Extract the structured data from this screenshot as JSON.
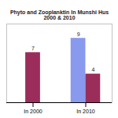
{
  "chart_data": {
    "type": "bar",
    "title": "Phyto and Zooplanktin In Munshi Hus\n2000 & 2010",
    "categories": [
      "In 2000",
      "In 2010"
    ],
    "series": [
      {
        "color": "#8899ee",
        "values": [
          null,
          9
        ]
      },
      {
        "color": "#9b2d5a",
        "values": [
          7,
          4
        ]
      }
    ],
    "ylim": [
      0,
      11
    ],
    "grid": false,
    "data_labels": true,
    "tick_labels": "x"
  }
}
